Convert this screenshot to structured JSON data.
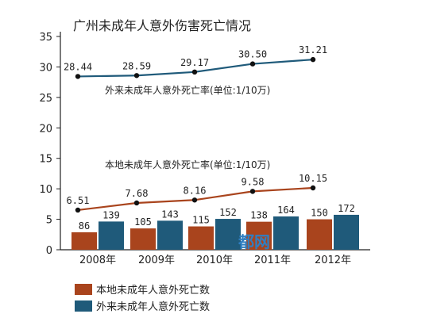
{
  "chart_data": {
    "type": "bar+line",
    "title": "广州未成年人意外伤害死亡情况",
    "categories": [
      "2008年",
      "2009年",
      "2010年",
      "2011年",
      "2012年"
    ],
    "bar_series": [
      {
        "name": "本地未成年人意外死亡数",
        "values": [
          86,
          105,
          115,
          138,
          150
        ],
        "color": "#a9441d"
      },
      {
        "name": "外来未成年人意外死亡数",
        "values": [
          139,
          143,
          152,
          164,
          172
        ],
        "color": "#1f5a7a"
      }
    ],
    "line_series": [
      {
        "name": "外来未成年人意外死亡率(单位:1/10万)",
        "values": [
          28.44,
          28.59,
          29.17,
          30.5,
          31.21
        ],
        "color": "#1f5a7a"
      },
      {
        "name": "本地未成年人意外死亡率(单位:1/10万)",
        "values": [
          6.51,
          7.68,
          8.16,
          9.58,
          10.15
        ],
        "color": "#a9441d"
      }
    ],
    "bar_labels": [
      [
        "86",
        "105",
        "115",
        "138",
        "150"
      ],
      [
        "139",
        "143",
        "152",
        "164",
        "172"
      ]
    ],
    "line_labels": [
      [
        "28.44",
        "28.59",
        "29.17",
        "30.50",
        "31.21"
      ],
      [
        "6.51",
        "7.68",
        "8.16",
        "9.58",
        "10.15"
      ]
    ],
    "y_ticks": [
      "0",
      "5",
      "10",
      "15",
      "20",
      "25",
      "30",
      "35"
    ],
    "ylim": [
      0,
      35
    ],
    "grid": false,
    "legend": {
      "placement": "bottom-left",
      "items": [
        "本地未成年人意外死亡数",
        "外来未成年人意外死亡数"
      ]
    }
  },
  "watermark": "都网"
}
